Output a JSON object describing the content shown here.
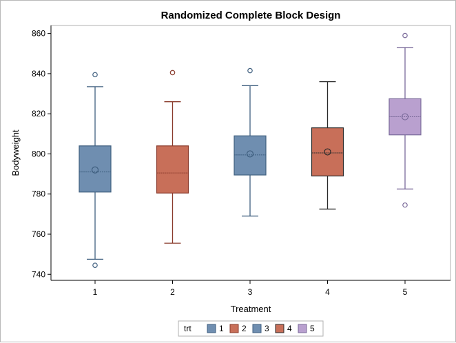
{
  "chart_data": {
    "type": "box",
    "title": "Randomized Complete Block Design",
    "xlabel": "Treatment",
    "ylabel": "Bodyweight",
    "categories": [
      "1",
      "2",
      "3",
      "4",
      "5"
    ],
    "ylim": [
      737,
      864
    ],
    "yticks": [
      740,
      760,
      780,
      800,
      820,
      840,
      860
    ],
    "boxes": [
      {
        "category": "1",
        "min": 747.5,
        "q1": 781,
        "median": 791,
        "q3": 804,
        "max": 833.5,
        "mean": 792,
        "outliers": [
          744.5,
          839.5
        ],
        "color": "#6f8eb0",
        "edge": "#3f5f7f"
      },
      {
        "category": "2",
        "min": 755.5,
        "q1": 780.5,
        "median": 790.5,
        "q3": 804,
        "max": 826,
        "mean": null,
        "outliers": [
          840.5
        ],
        "color": "#c86f59",
        "edge": "#8a3b2c"
      },
      {
        "category": "3",
        "min": 769,
        "q1": 789.5,
        "median": 799.5,
        "q3": 809,
        "max": 834,
        "mean": 800,
        "outliers": [
          841.5
        ],
        "color": "#6f8eb0",
        "edge": "#3f5f7f"
      },
      {
        "category": "4",
        "min": 772.5,
        "q1": 789,
        "median": 800.5,
        "q3": 813,
        "max": 836,
        "mean": 801,
        "outliers": [],
        "color": "#c86f59",
        "edge": "#2a2a2a"
      },
      {
        "category": "5",
        "min": 782.5,
        "q1": 809.5,
        "median": 818.5,
        "q3": 827.5,
        "max": 853,
        "mean": 818.5,
        "outliers": [
          774.5,
          859
        ],
        "color": "#b9a0cf",
        "edge": "#7a6a9a"
      }
    ],
    "grid": false,
    "legend_position": "bottom",
    "legend": {
      "title": "trt",
      "items": [
        {
          "label": "1",
          "color": "#6f8eb0",
          "edge": "#3f5f7f"
        },
        {
          "label": "2",
          "color": "#c86f59",
          "edge": "#8a3b2c"
        },
        {
          "label": "3",
          "color": "#6f8eb0",
          "edge": "#3f5f7f"
        },
        {
          "label": "4",
          "color": "#c86f59",
          "edge": "#2a2a2a"
        },
        {
          "label": "5",
          "color": "#b9a0cf",
          "edge": "#7a6a9a"
        }
      ]
    }
  }
}
